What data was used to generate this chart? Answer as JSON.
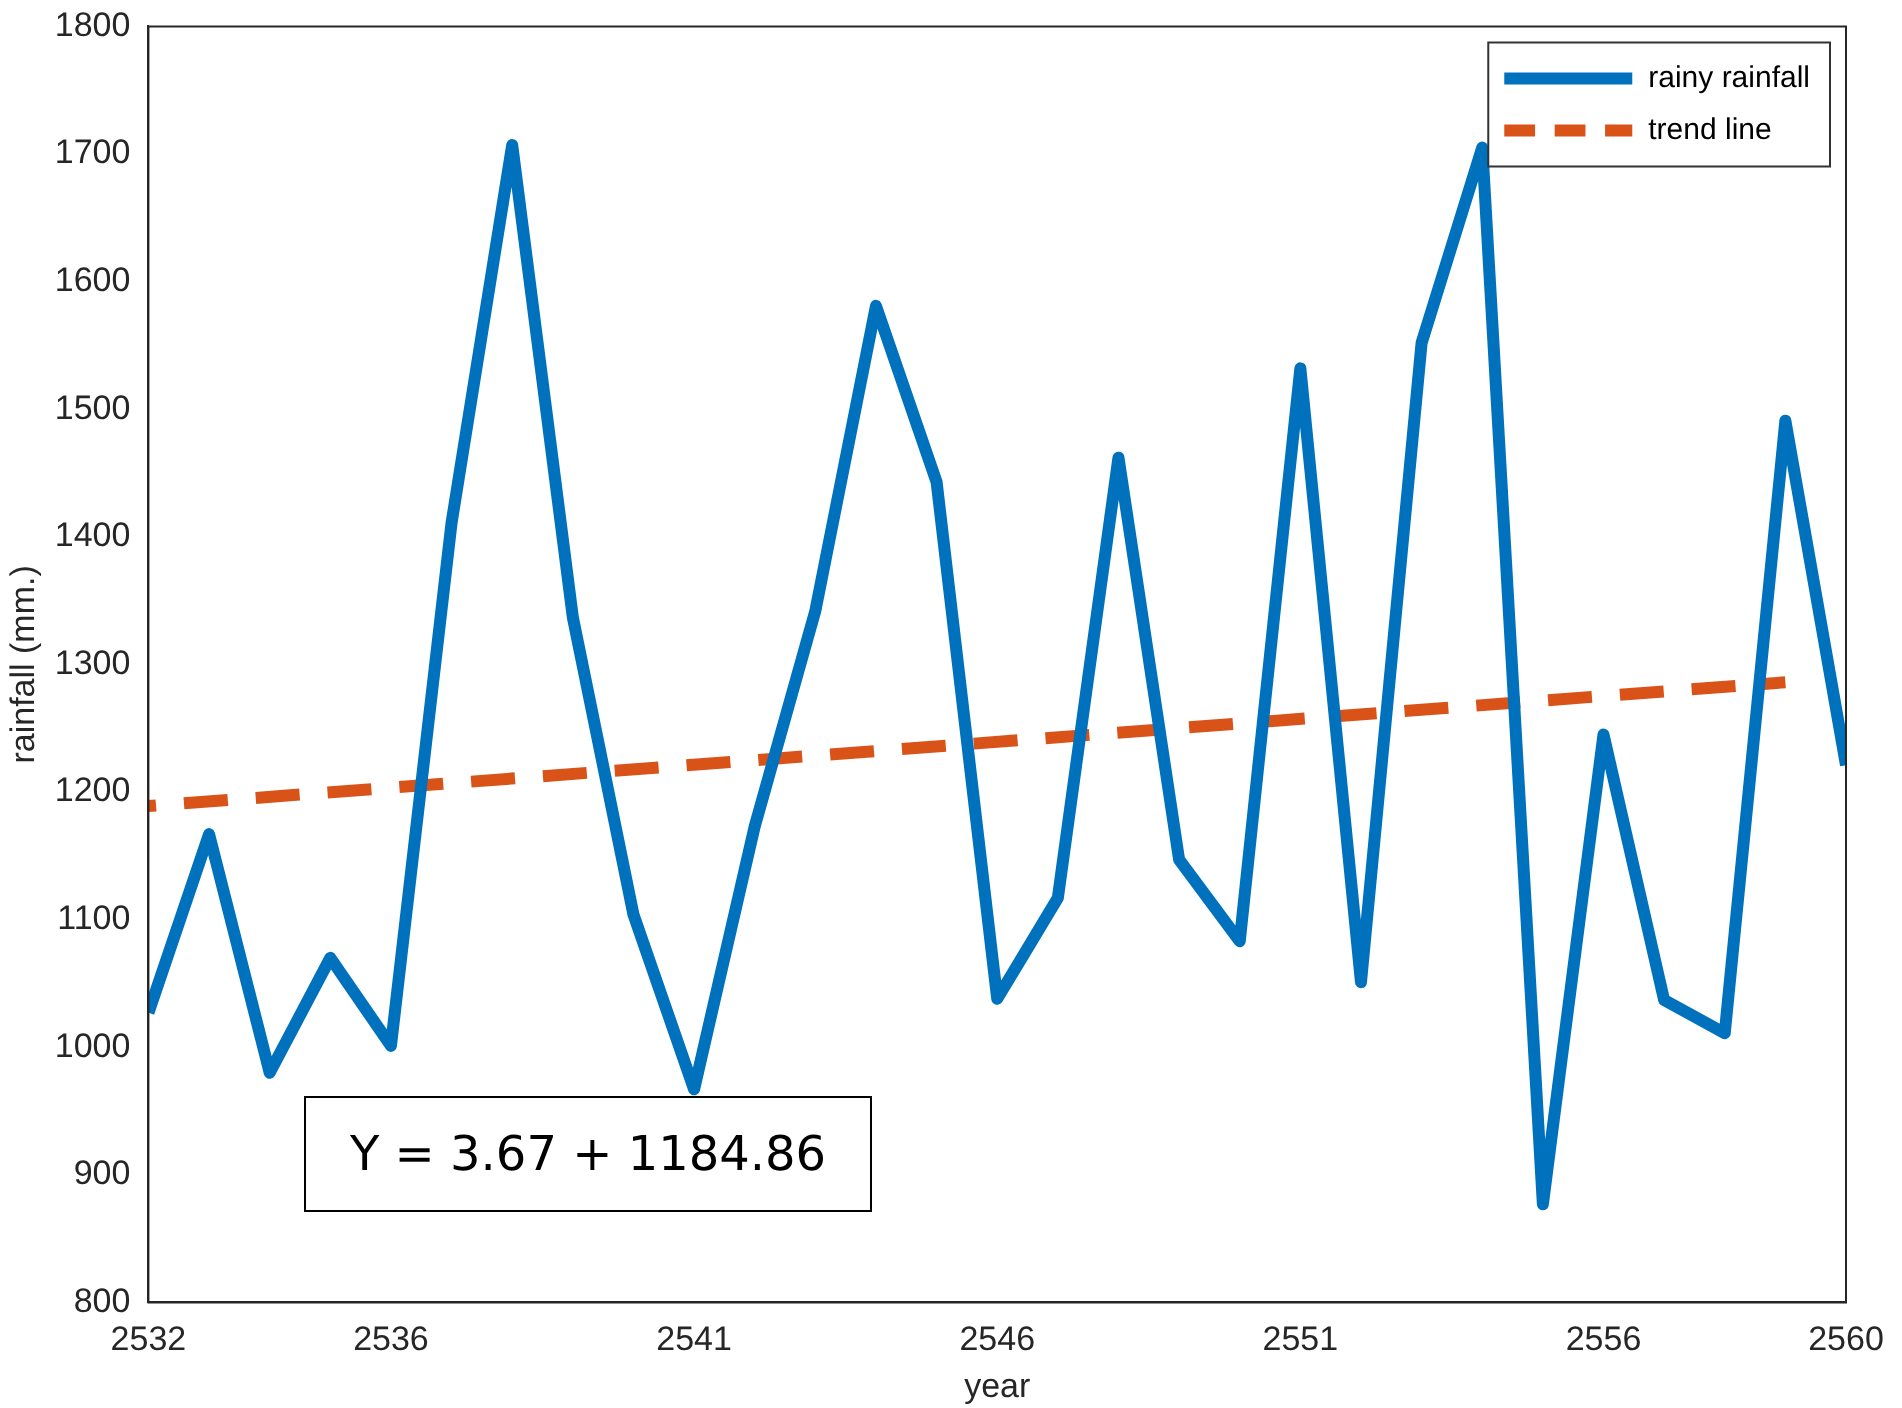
{
  "chart_data": {
    "type": "line",
    "xlabel": "year",
    "ylabel": "rainfall (mm.)",
    "xlim": [
      2532,
      2560
    ],
    "xticks": [
      2532,
      2536,
      2541,
      2546,
      2551,
      2556,
      2560
    ],
    "ylim": [
      800,
      1800
    ],
    "yticks": [
      800,
      900,
      1000,
      1100,
      1200,
      1300,
      1400,
      1500,
      1600,
      1700,
      1800
    ],
    "legend": "top right",
    "marker": "none",
    "annotations": [
      "Y = 3.67 + 1184.86"
    ],
    "x": [
      2532,
      2533,
      2534,
      2535,
      2536,
      2537,
      2538,
      2539,
      2540,
      2541,
      2542,
      2543,
      2544,
      2545,
      2546,
      2547,
      2548,
      2549,
      2550,
      2551,
      2552,
      2553,
      2554,
      2555,
      2556,
      2557,
      2558,
      2559,
      2560
    ],
    "series": [
      {
        "name": "rainy rainfall",
        "color": "#0072bd",
        "line_style": "solid",
        "values": [
          1027,
          1167,
          980,
          1070,
          1001,
          1411,
          1707,
          1337,
          1104,
          967,
          1173,
          1342,
          1581,
          1443,
          1038,
          1117,
          1462,
          1147,
          1083,
          1532,
          1051,
          1552,
          1705,
          877,
          1245,
          1037,
          1011,
          1491,
          1221
        ]
      },
      {
        "name": "trend line",
        "color": "#d95319",
        "line_style": "dashed",
        "x": [
          2532,
          2559
        ],
        "values": [
          1189,
          1286
        ]
      }
    ]
  }
}
